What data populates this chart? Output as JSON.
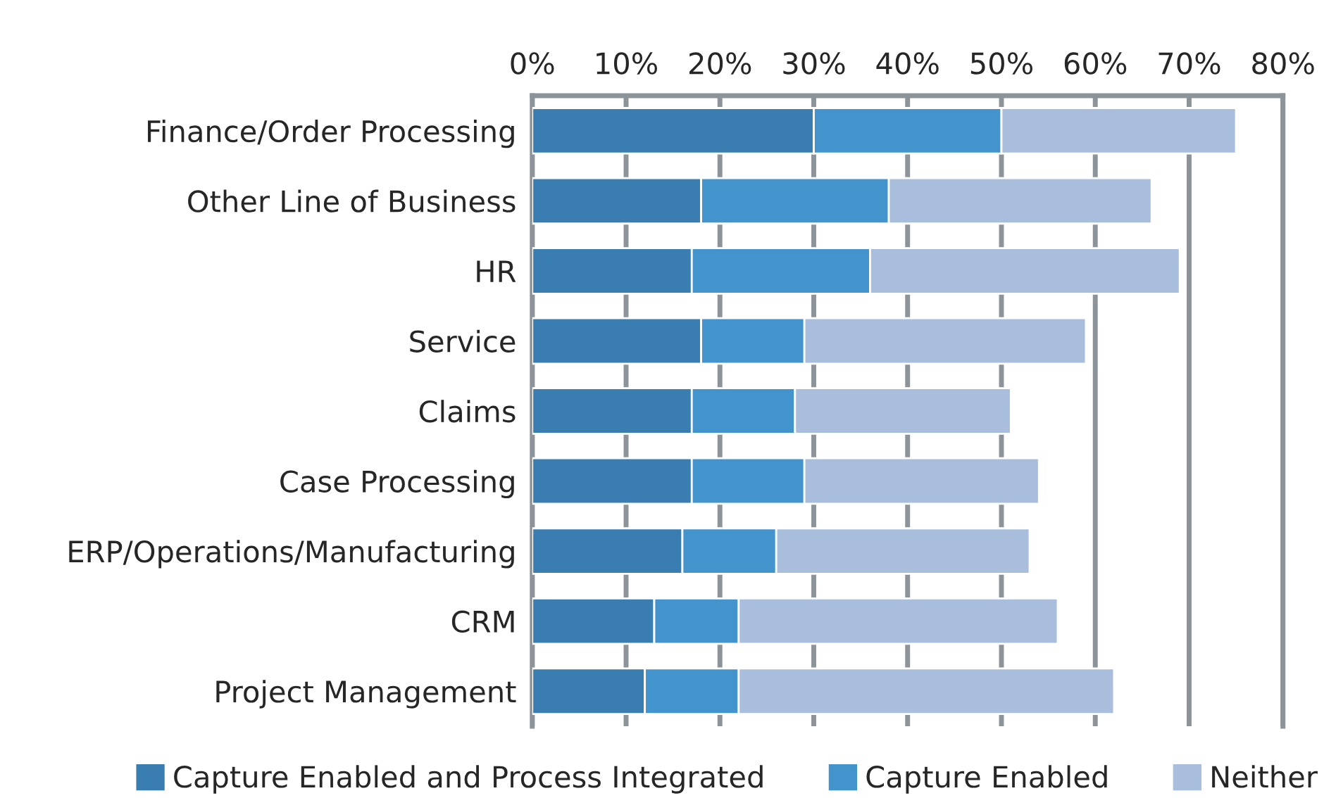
{
  "chart_data": {
    "type": "bar",
    "orientation": "horizontal",
    "stacked": true,
    "categories": [
      "Finance/Order Processing",
      "Other Line of Business",
      "HR",
      "Service",
      "Claims",
      "Case Processing",
      "ERP/Operations/Manufacturing",
      "CRM",
      "Project Management"
    ],
    "series": [
      {
        "name": "Capture Enabled and Process Integrated",
        "color": "#3a7db0",
        "values": [
          30,
          18,
          17,
          18,
          17,
          17,
          16,
          13,
          12
        ]
      },
      {
        "name": "Capture Enabled",
        "color": "#4393cc",
        "values": [
          20,
          20,
          19,
          11,
          11,
          12,
          10,
          9,
          10
        ]
      },
      {
        "name": "Neither",
        "color": "#a8bedc",
        "values": [
          25,
          28,
          33,
          30,
          23,
          25,
          27,
          34,
          40
        ]
      }
    ],
    "xlim": [
      0,
      80
    ],
    "xticks": [
      {
        "value": 0,
        "label": "0%"
      },
      {
        "value": 10,
        "label": "10%"
      },
      {
        "value": 20,
        "label": "20%"
      },
      {
        "value": 30,
        "label": "30%"
      },
      {
        "value": 40,
        "label": "40%"
      },
      {
        "value": 50,
        "label": "50%"
      },
      {
        "value": 60,
        "label": "60%"
      },
      {
        "value": 70,
        "label": "70%"
      },
      {
        "value": 80,
        "label": "80%"
      }
    ],
    "grid": "x",
    "legend": "bottom"
  }
}
